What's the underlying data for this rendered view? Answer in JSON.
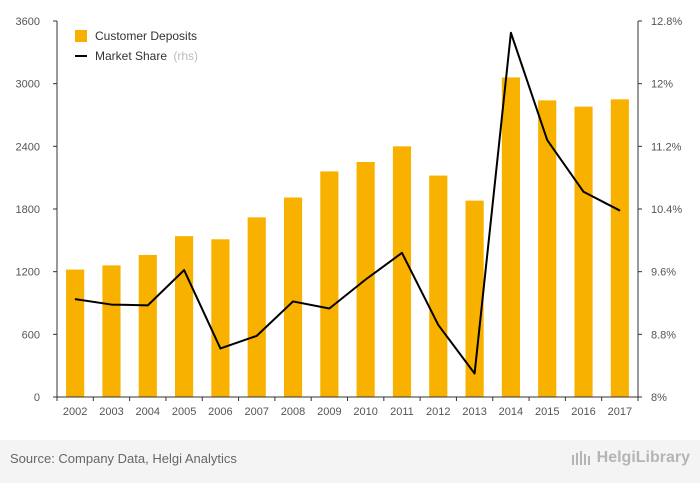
{
  "chart_data": {
    "type": "bar+line",
    "categories": [
      "2002",
      "2003",
      "2004",
      "2005",
      "2006",
      "2007",
      "2008",
      "2009",
      "2010",
      "2011",
      "2012",
      "2013",
      "2014",
      "2015",
      "2016",
      "2017"
    ],
    "series": [
      {
        "name": "Customer Deposits",
        "type": "bar",
        "axis": "left",
        "values": [
          1220,
          1260,
          1360,
          1540,
          1510,
          1720,
          1910,
          2160,
          2250,
          2400,
          2120,
          1880,
          3060,
          2840,
          2780,
          2850
        ]
      },
      {
        "name": "Market Share",
        "name_suffix": "(rhs)",
        "type": "line",
        "axis": "right",
        "values": [
          9.25,
          9.18,
          9.17,
          9.62,
          8.62,
          8.78,
          9.22,
          9.13,
          9.5,
          9.84,
          8.92,
          8.3,
          12.65,
          11.28,
          10.62,
          10.38
        ]
      }
    ],
    "left_axis": {
      "min": 0,
      "max": 3600,
      "ticks": [
        "0",
        "600",
        "1200",
        "1800",
        "2400",
        "3000",
        "3600"
      ],
      "tick_values": [
        0,
        600,
        1200,
        1800,
        2400,
        3000,
        3600
      ]
    },
    "right_axis": {
      "min": 8,
      "max": 12.8,
      "ticks": [
        "8%",
        "8.8%",
        "9.6%",
        "10.4%",
        "11.2%",
        "12%",
        "12.8%"
      ],
      "tick_values": [
        8,
        8.8,
        9.6,
        10.4,
        11.2,
        12,
        12.8
      ]
    },
    "legend_position": "top-left",
    "colors": {
      "bar": "#f9b100",
      "line": "#000000",
      "axis": "#333333"
    }
  },
  "footer": {
    "source": "Source: Company Data, Helgi Analytics",
    "brand": "HelgiLibrary"
  }
}
